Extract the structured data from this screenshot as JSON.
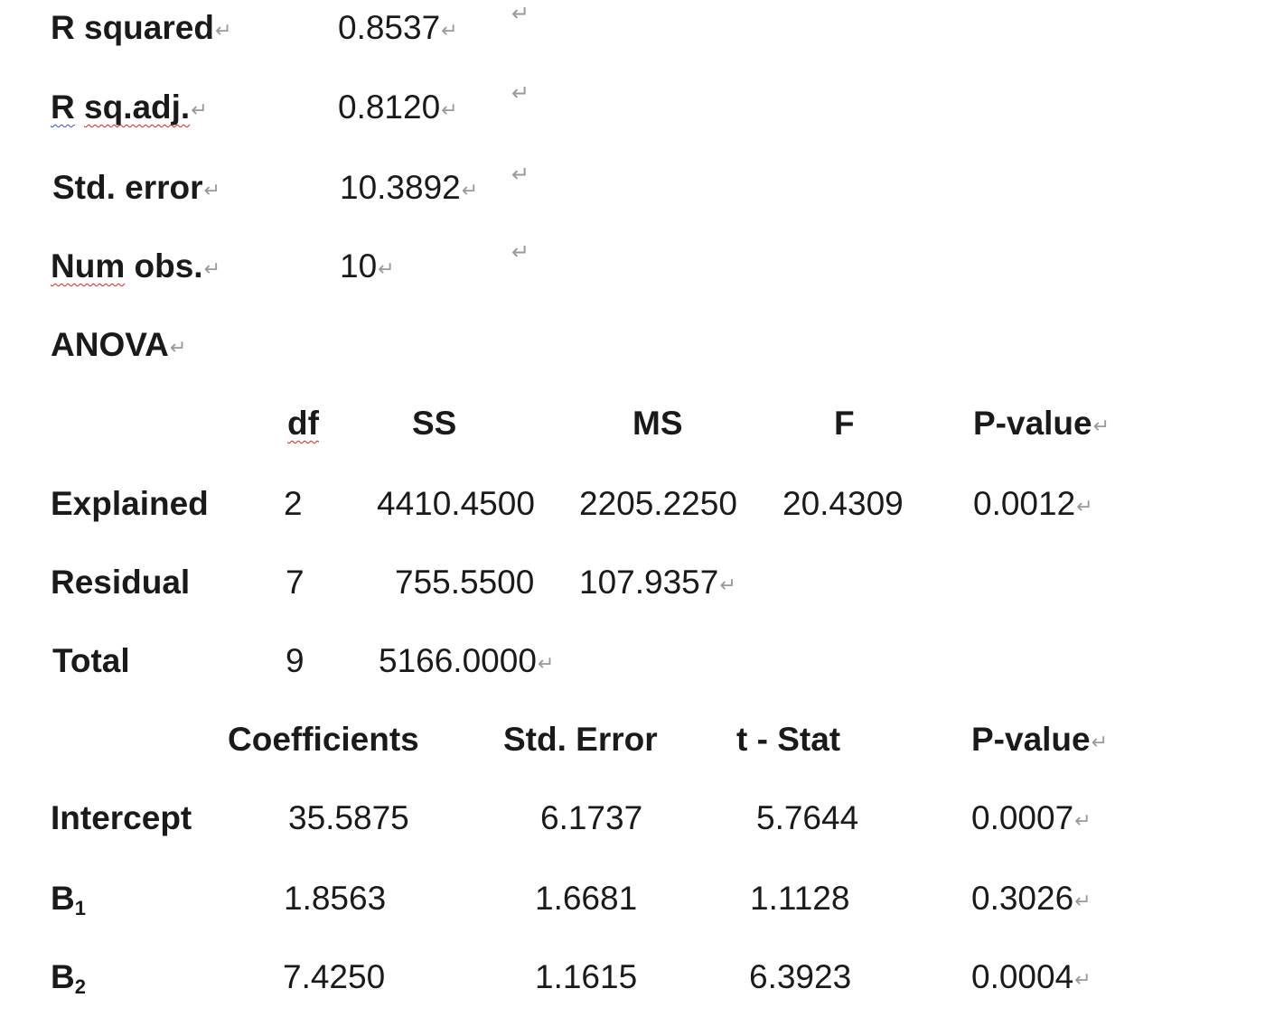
{
  "summary": {
    "r_squared": {
      "label": "R squared",
      "value": "0.8537"
    },
    "r_sq_adj": {
      "label_r": "R",
      "label_rest": "sq.adj.",
      "value": "0.8120"
    },
    "std_error": {
      "label": "Std. error",
      "value": "10.3892"
    },
    "num_obs": {
      "label_num": "Num",
      "label_rest": " obs.",
      "value": "10"
    }
  },
  "anova": {
    "title": "ANOVA",
    "headers": {
      "df": "df",
      "ss": "SS",
      "ms": "MS",
      "f": "F",
      "p": "P-value"
    },
    "rows": [
      {
        "label": "Explained",
        "df": "2",
        "ss": "4410.4500",
        "ms": "2205.2250",
        "f": "20.4309",
        "p": "0.0012"
      },
      {
        "label": "Residual",
        "df": "7",
        "ss": "755.5500",
        "ms": "107.9357"
      },
      {
        "label": "Total",
        "df": "9",
        "ss": "5166.0000"
      }
    ]
  },
  "coefficients": {
    "headers": {
      "coef": "Coefficients",
      "se": "Std. Error",
      "t": "t - Stat",
      "p": "P-value"
    },
    "rows": [
      {
        "label": "Intercept",
        "coef": "35.5875",
        "se": "6.1737",
        "t": "5.7644",
        "p": "0.0007"
      },
      {
        "label_main": "B",
        "label_sub": "1",
        "coef": "1.8563",
        "se": "1.6681",
        "t": "1.1128",
        "p": "0.3026"
      },
      {
        "label_main": "B",
        "label_sub": "2",
        "coef": "7.4250",
        "se": "1.1615",
        "t": "6.3923",
        "p": "0.0004"
      }
    ]
  },
  "marks": {
    "paragraph": "↵"
  }
}
